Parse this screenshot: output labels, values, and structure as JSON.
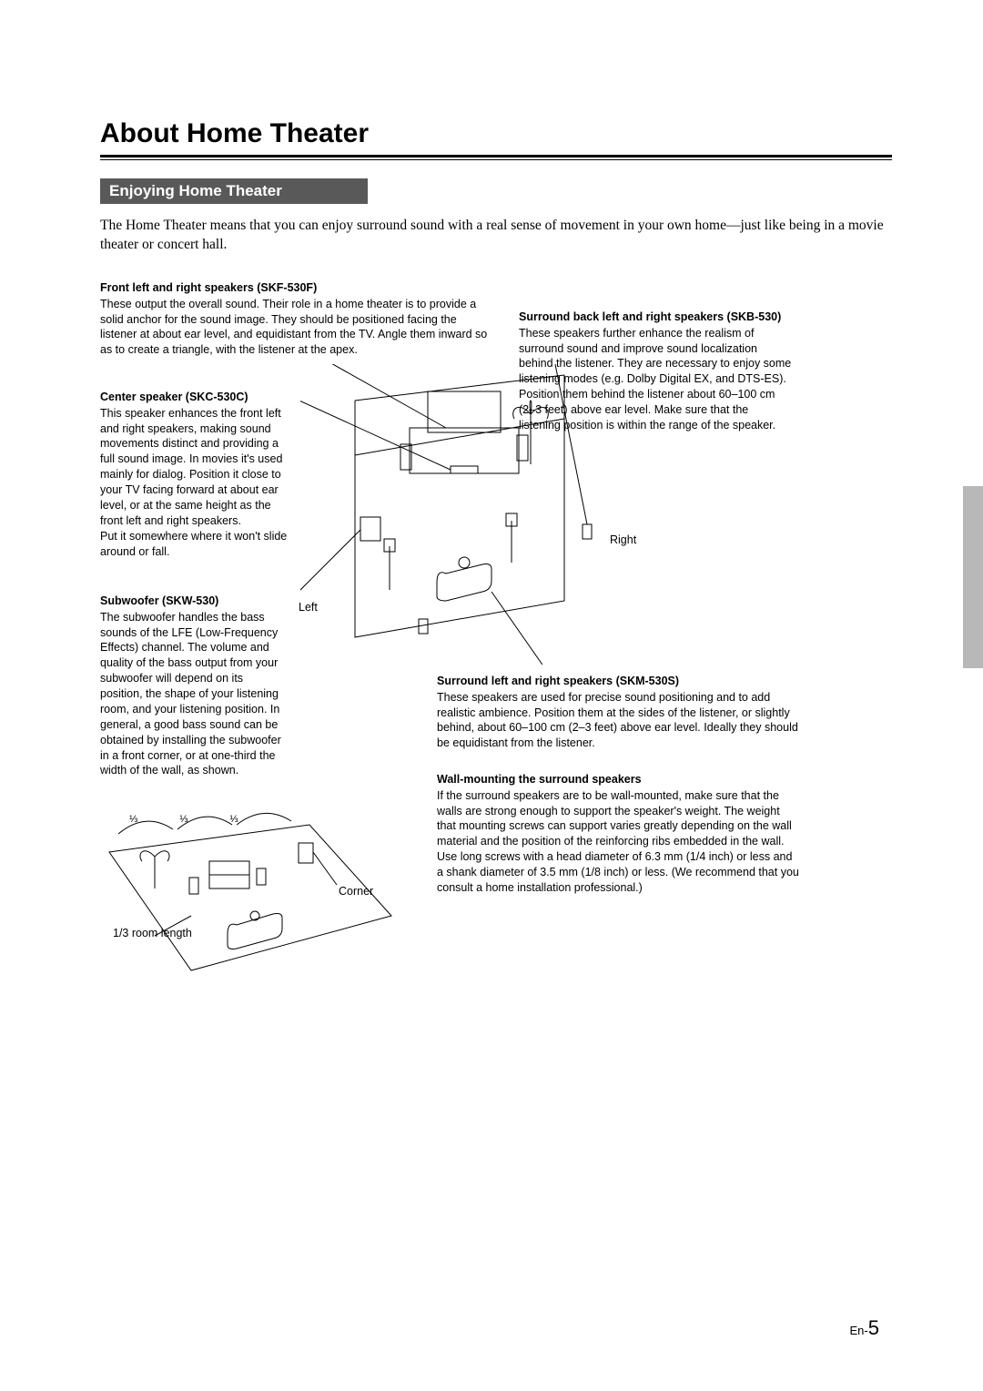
{
  "page": {
    "title": "About Home Theater",
    "section_header": "Enjoying Home Theater",
    "intro": "The Home Theater means that you can enjoy surround sound with a real sense of movement in your own home—just like being in a movie theater or concert hall.",
    "page_number_prefix": "En-",
    "page_number": "5"
  },
  "blocks": {
    "front": {
      "title": "Front left and right speakers (SKF-530F)",
      "body": "These output the overall sound. Their role in a home theater is to provide a solid anchor for the sound image. They should be positioned facing the listener at about ear level, and equidistant from the TV. Angle them inward so as to create a triangle, with the listener at the apex."
    },
    "center": {
      "title": "Center speaker (SKC-530C)",
      "body": "This speaker enhances the front left and right speakers, making sound movements distinct and providing a full sound image. In movies it's used mainly for dialog. Position it close to your TV facing forward at about ear level, or at the same height as the front left and right speakers.\nPut it somewhere where it won't slide around or fall."
    },
    "subwoofer": {
      "title": "Subwoofer (SKW-530)",
      "body": "The subwoofer handles the bass sounds of the LFE (Low-Frequency Effects) channel. The volume and quality of the bass output from your subwoofer will depend on its position, the shape of your listening room, and your listening position. In general, a good bass sound can be obtained by installing the subwoofer in a front corner, or at one-third the width of the wall, as shown."
    },
    "surround_back": {
      "title": "Surround back left and right speakers (SKB-530)",
      "body": "These speakers further enhance the realism of surround sound and improve sound localization behind the listener. They are necessary to enjoy some listening modes (e.g. Dolby Digital EX, and DTS-ES). Position them behind the listener about 60–100 cm (2–3 feet) above ear level. Make sure that the listening position is within the range of the speaker."
    },
    "surround": {
      "title": "Surround left and right speakers (SKM-530S)",
      "body": "These speakers are used for precise sound positioning and to add realistic ambience. Position them at the sides of the listener, or slightly behind, about 60–100 cm (2–3 feet) above ear level. Ideally they should be equidistant from the listener."
    },
    "wall": {
      "title": "Wall-mounting the surround speakers",
      "body": "If the surround speakers are to be wall-mounted, make sure that the walls are strong enough to support the speaker's weight. The weight that mounting screws can support varies greatly depending on the wall material and the position of the reinforcing ribs embedded in the wall.\nUse long screws with a head diameter of 6.3 mm (1/4 inch) or less and a shank diameter of 3.5 mm (1/8 inch) or less. (We recommend that you consult a home installation professional.)"
    }
  },
  "labels": {
    "right": "Right",
    "left": "Left",
    "corner": "Corner",
    "room_length": "1/3 room length",
    "frac": "⅓"
  },
  "style": {
    "body_font_size": 12.5,
    "title_font_size": 30,
    "section_bg": "#595959",
    "tab_bg": "#b8b8b8",
    "line_color": "#000000",
    "background": "#ffffff"
  }
}
